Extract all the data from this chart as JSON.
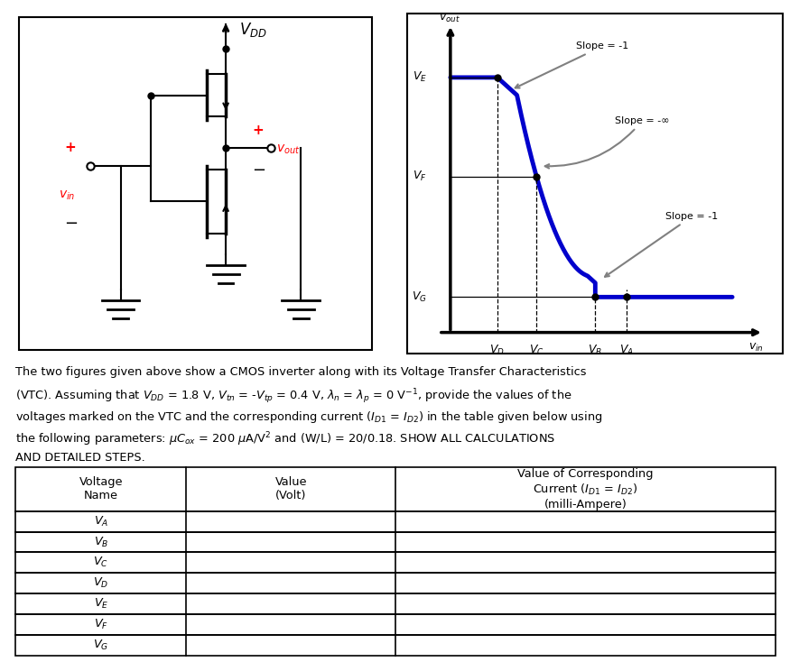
{
  "bg_color": "#ffffff",
  "curve_color": "#0000cc",
  "axis_color": "#000000",
  "vtc_xlabel": "$v_{in}$",
  "vtc_ylabel": "$v_{out}$",
  "slope_labels": [
    "Slope = -1",
    "Slope = -∞",
    "Slope = -1"
  ],
  "vtc_labels_x": [
    "$V_D$",
    "$V_C$",
    "$V_B$",
    "$V_A$"
  ],
  "vtc_labels_y": [
    "$V_E$",
    "$V_F$",
    "$V_G$"
  ],
  "table_rows": [
    "$V_A$",
    "$V_B$",
    "$V_C$",
    "$V_D$",
    "$V_E$",
    "$V_F$",
    "$V_G$"
  ],
  "para_line1": "The two figures given above show a CMOS inverter along with its Voltage Transfer Characteristics",
  "para_line2": "(VTC). Assuming that $V_{DD}$ = 1.8 V, $V_{tn}$ = -$V_{tp}$ = 0.4 V, $\\lambda_n$ = $\\lambda_p$ = 0 V$^{-1}$, provide the values of the",
  "para_line3": "voltages marked on the VTC and the corresponding current ($I_{D1}$ = $I_{D2}$) in the table given below using",
  "para_line4": "the following parameters: $\\mu C_{ox}$ = 200 $\\mu$A/V$^2$ and (W/L) = 20/0.18. SHOW ALL CALCULATIONS",
  "para_line5": "AND DETAILED STEPS.",
  "col_header1": "Voltage\nName",
  "col_header2": "Value\n(Volt)",
  "col_header3": "Value of Corresponding\nCurrent ($I_{D1}$ = $I_{D2}$)\n(milli-Ampere)",
  "VDD_label": "$V_{DD}$",
  "vin_label": "$v_{in}$",
  "vout_label": "$v_{out}$"
}
